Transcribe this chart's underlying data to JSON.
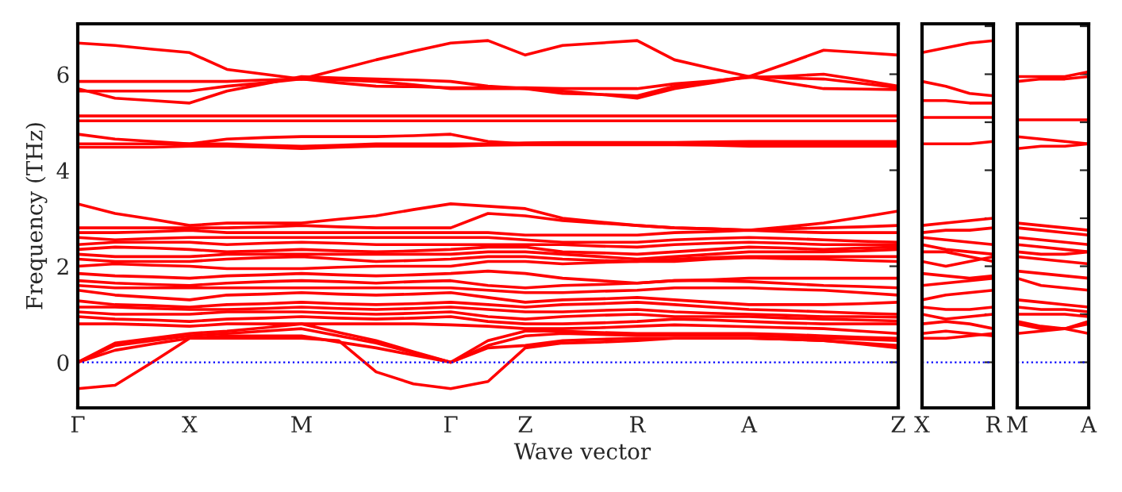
{
  "chart_data": [
    {
      "type": "line",
      "ylabel": "Frequency (THz)",
      "xlabel": "Wave vector",
      "ylim": [
        -0.95,
        7.05
      ],
      "categories": [
        "Γ",
        null,
        null,
        "X",
        null,
        null,
        "M",
        null,
        null,
        null,
        "Γ",
        null,
        "Z",
        null,
        null,
        "R",
        null,
        null,
        "A",
        null,
        null,
        null,
        "Z"
      ],
      "yticks": [
        0,
        2,
        4,
        6
      ],
      "grid": false,
      "legend": false,
      "line_style": "solid",
      "marker": "none",
      "ref_lines": [
        {
          "axis": "y",
          "value": 0,
          "label": null,
          "color": "#0000ff",
          "line_style": "dotted"
        }
      ],
      "series": [
        {
          "color": "#ff0000",
          "values": [
            6.65,
            6.6,
            6.52,
            6.45,
            6.1,
            6.0,
            5.9,
            6.1,
            6.3,
            6.48,
            6.65,
            6.7,
            6.4,
            6.6,
            6.65,
            6.7,
            6.3,
            6.12,
            5.95,
            6.22,
            6.5,
            6.45,
            6.4
          ]
        },
        {
          "color": "#ff0000",
          "values": [
            5.7,
            5.5,
            5.45,
            5.4,
            5.65,
            5.8,
            5.95,
            5.92,
            5.9,
            5.88,
            5.85,
            5.75,
            5.7,
            5.65,
            5.58,
            5.5,
            5.7,
            5.82,
            5.95,
            5.82,
            5.7,
            5.69,
            5.68
          ]
        },
        {
          "color": "#ff0000",
          "values": [
            5.85,
            5.85,
            5.85,
            5.85,
            5.85,
            5.88,
            5.9,
            5.88,
            5.85,
            5.78,
            5.7,
            5.7,
            5.7,
            5.6,
            5.58,
            5.55,
            5.75,
            5.85,
            5.95,
            5.92,
            5.9,
            5.81,
            5.72
          ]
        },
        {
          "color": "#ff0000",
          "values": [
            5.65,
            5.65,
            5.65,
            5.65,
            5.75,
            5.82,
            5.9,
            5.82,
            5.75,
            5.74,
            5.72,
            5.72,
            5.72,
            5.7,
            5.7,
            5.7,
            5.8,
            5.86,
            5.93,
            5.96,
            6.0,
            5.88,
            5.75
          ]
        },
        {
          "color": "#ff0000",
          "values": [
            5.13,
            5.13,
            5.13,
            5.13,
            5.13,
            5.13,
            5.13,
            5.13,
            5.13,
            5.13,
            5.13,
            5.13,
            5.13,
            5.13,
            5.13,
            5.13,
            5.13,
            5.13,
            5.13,
            5.13,
            5.13,
            5.13,
            5.13
          ]
        },
        {
          "color": "#ff0000",
          "values": [
            5.03,
            5.03,
            5.03,
            5.03,
            5.03,
            5.03,
            5.03,
            5.03,
            5.03,
            5.03,
            5.03,
            5.03,
            5.03,
            5.03,
            5.03,
            5.03,
            5.03,
            5.03,
            5.03,
            5.03,
            5.03,
            5.03,
            5.03
          ]
        },
        {
          "color": "#ff0000",
          "values": [
            4.75,
            4.65,
            4.6,
            4.55,
            4.65,
            4.68,
            4.7,
            4.7,
            4.7,
            4.72,
            4.75,
            4.6,
            4.55,
            4.55,
            4.55,
            4.55,
            4.55,
            4.55,
            4.55,
            4.55,
            4.55,
            4.55,
            4.55
          ]
        },
        {
          "color": "#ff0000",
          "values": [
            4.55,
            4.55,
            4.55,
            4.55,
            4.55,
            4.52,
            4.5,
            4.52,
            4.55,
            4.55,
            4.55,
            4.55,
            4.57,
            4.58,
            4.58,
            4.58,
            4.58,
            4.59,
            4.6,
            4.6,
            4.6,
            4.6,
            4.6
          ]
        },
        {
          "color": "#ff0000",
          "values": [
            4.48,
            4.48,
            4.48,
            4.5,
            4.5,
            4.48,
            4.45,
            4.48,
            4.5,
            4.5,
            4.5,
            4.52,
            4.53,
            4.53,
            4.53,
            4.53,
            4.53,
            4.52,
            4.5,
            4.5,
            4.5,
            4.5,
            4.5
          ]
        },
        {
          "color": "#ff0000",
          "values": [
            3.3,
            3.1,
            2.98,
            2.85,
            2.9,
            2.9,
            2.9,
            2.98,
            3.05,
            3.18,
            3.3,
            3.25,
            3.2,
            3.0,
            2.92,
            2.85,
            2.8,
            2.78,
            2.75,
            2.82,
            2.9,
            3.02,
            3.15
          ]
        },
        {
          "color": "#ff0000",
          "values": [
            2.8,
            2.8,
            2.8,
            2.8,
            2.8,
            2.82,
            2.85,
            2.82,
            2.8,
            2.8,
            2.8,
            3.1,
            3.05,
            2.95,
            2.9,
            2.85,
            2.8,
            2.78,
            2.75,
            2.78,
            2.8,
            2.82,
            2.85
          ]
        },
        {
          "color": "#ff0000",
          "values": [
            2.7,
            2.7,
            2.72,
            2.75,
            2.7,
            2.7,
            2.7,
            2.7,
            2.7,
            2.7,
            2.7,
            2.7,
            2.65,
            2.65,
            2.65,
            2.65,
            2.7,
            2.72,
            2.75,
            2.72,
            2.7,
            2.7,
            2.7
          ]
        },
        {
          "color": "#ff0000",
          "values": [
            2.6,
            2.55,
            2.58,
            2.6,
            2.6,
            2.6,
            2.6,
            2.6,
            2.6,
            2.6,
            2.6,
            2.6,
            2.55,
            2.5,
            2.5,
            2.5,
            2.55,
            2.58,
            2.6,
            2.58,
            2.55,
            2.52,
            2.5
          ]
        },
        {
          "color": "#ff0000",
          "values": [
            2.45,
            2.5,
            2.5,
            2.5,
            2.45,
            2.48,
            2.5,
            2.48,
            2.45,
            2.45,
            2.45,
            2.45,
            2.45,
            2.45,
            2.42,
            2.4,
            2.45,
            2.48,
            2.5,
            2.48,
            2.45,
            2.45,
            2.45
          ]
        },
        {
          "color": "#ff0000",
          "values": [
            2.35,
            2.4,
            2.38,
            2.35,
            2.3,
            2.32,
            2.35,
            2.32,
            2.3,
            2.32,
            2.35,
            2.4,
            2.4,
            2.3,
            2.28,
            2.25,
            2.3,
            2.35,
            2.4,
            2.38,
            2.35,
            2.38,
            2.4
          ]
        },
        {
          "color": "#ff0000",
          "values": [
            2.25,
            2.2,
            2.2,
            2.2,
            2.25,
            2.25,
            2.25,
            2.25,
            2.25,
            2.25,
            2.25,
            2.3,
            2.3,
            2.25,
            2.2,
            2.15,
            2.2,
            2.25,
            2.3,
            2.3,
            2.3,
            2.32,
            2.35
          ]
        },
        {
          "color": "#ff0000",
          "values": [
            2.15,
            2.1,
            2.1,
            2.1,
            2.15,
            2.18,
            2.2,
            2.15,
            2.1,
            2.12,
            2.15,
            2.2,
            2.2,
            2.15,
            2.12,
            2.1,
            2.15,
            2.18,
            2.2,
            2.2,
            2.2,
            2.2,
            2.2
          ]
        },
        {
          "color": "#ff0000",
          "values": [
            2.0,
            2.05,
            2.02,
            2.0,
            1.95,
            1.95,
            1.95,
            1.98,
            2.0,
            2.0,
            2.0,
            2.1,
            2.1,
            2.05,
            2.08,
            2.1,
            2.1,
            2.15,
            2.18,
            2.16,
            2.15,
            2.12,
            2.1
          ]
        },
        {
          "color": "#ff0000",
          "values": [
            1.85,
            1.8,
            1.78,
            1.75,
            1.8,
            1.82,
            1.85,
            1.82,
            1.8,
            1.82,
            1.85,
            1.9,
            1.85,
            1.75,
            1.7,
            1.65,
            1.7,
            1.72,
            1.75,
            1.75,
            1.75,
            1.75,
            1.75
          ]
        },
        {
          "color": "#ff0000",
          "values": [
            1.7,
            1.65,
            1.62,
            1.6,
            1.65,
            1.68,
            1.7,
            1.68,
            1.65,
            1.68,
            1.7,
            1.6,
            1.55,
            1.6,
            1.62,
            1.65,
            1.7,
            1.7,
            1.68,
            1.64,
            1.6,
            1.58,
            1.55
          ]
        },
        {
          "color": "#ff0000",
          "values": [
            1.6,
            1.55,
            1.55,
            1.55,
            1.55,
            1.55,
            1.55,
            1.55,
            1.55,
            1.55,
            1.55,
            1.5,
            1.45,
            1.45,
            1.48,
            1.5,
            1.55,
            1.55,
            1.55,
            1.52,
            1.5,
            1.45,
            1.4
          ]
        },
        {
          "color": "#ff0000",
          "values": [
            1.5,
            1.4,
            1.35,
            1.3,
            1.4,
            1.42,
            1.45,
            1.42,
            1.4,
            1.42,
            1.45,
            1.35,
            1.25,
            1.3,
            1.32,
            1.35,
            1.3,
            1.25,
            1.2,
            1.2,
            1.2,
            1.22,
            1.25
          ]
        },
        {
          "color": "#ff0000",
          "values": [
            1.28,
            1.2,
            1.18,
            1.15,
            1.2,
            1.22,
            1.25,
            1.22,
            1.2,
            1.22,
            1.25,
            1.2,
            1.15,
            1.2,
            1.22,
            1.25,
            1.2,
            1.15,
            1.1,
            1.08,
            1.05,
            1.02,
            1.0
          ]
        },
        {
          "color": "#ff0000",
          "values": [
            1.15,
            1.15,
            1.12,
            1.1,
            1.1,
            1.12,
            1.15,
            1.12,
            1.1,
            1.12,
            1.15,
            1.1,
            1.05,
            1.05,
            1.08,
            1.1,
            1.05,
            1.02,
            1.0,
            0.98,
            0.95,
            0.95,
            0.94
          ]
        },
        {
          "color": "#ff0000",
          "values": [
            1.05,
            1.0,
            1.0,
            1.0,
            1.05,
            1.05,
            1.05,
            1.02,
            1.0,
            1.02,
            1.05,
            0.95,
            0.9,
            0.95,
            0.98,
            1.0,
            0.95,
            0.95,
            0.95,
            0.92,
            0.9,
            0.88,
            0.86
          ]
        },
        {
          "color": "#ff0000",
          "values": [
            0.95,
            0.9,
            0.88,
            0.85,
            0.9,
            0.92,
            0.95,
            0.92,
            0.9,
            0.92,
            0.95,
            0.85,
            0.8,
            0.8,
            0.82,
            0.85,
            0.9,
            0.88,
            0.85,
            0.82,
            0.8,
            0.8,
            0.8
          ]
        },
        {
          "color": "#ff0000",
          "values": [
            0.8,
            0.8,
            0.78,
            0.75,
            0.8,
            0.8,
            0.8,
            0.8,
            0.8,
            0.8,
            0.78,
            0.75,
            0.7,
            0.7,
            0.72,
            0.75,
            0.78,
            0.76,
            0.74,
            0.72,
            0.7,
            0.65,
            0.6
          ]
        },
        {
          "color": "#ff0000",
          "values": [
            0,
            0.4,
            0.5,
            0.6,
            0.65,
            0.72,
            0.8,
            0.62,
            0.45,
            0.22,
            0,
            0.45,
            0.65,
            0.65,
            0.62,
            0.6,
            0.6,
            0.6,
            0.6,
            0.58,
            0.55,
            0.52,
            0.5
          ]
        },
        {
          "color": "#ff0000",
          "values": [
            0,
            0.35,
            0.45,
            0.55,
            0.6,
            0.65,
            0.7,
            0.55,
            0.4,
            0.2,
            0,
            0.35,
            0.55,
            0.6,
            0.58,
            0.56,
            0.56,
            0.56,
            0.56,
            0.53,
            0.5,
            0.48,
            0.45
          ]
        },
        {
          "color": "#ff0000",
          "values": [
            0,
            0.25,
            0.38,
            0.5,
            0.55,
            0.55,
            0.55,
            0.42,
            0.3,
            0.15,
            0,
            0.3,
            0.35,
            0.45,
            0.48,
            0.5,
            0.5,
            0.5,
            0.5,
            0.48,
            0.45,
            0.4,
            0.35
          ]
        },
        {
          "color": "#ff0000",
          "values": [
            -0.55,
            -0.48,
            0.0,
            0.5,
            0.5,
            0.5,
            0.5,
            0.45,
            -0.2,
            -0.45,
            -0.55,
            -0.4,
            0.3,
            0.4,
            0.42,
            0.45,
            0.5,
            0.5,
            0.5,
            0.48,
            0.45,
            0.38,
            0.3
          ]
        }
      ]
    },
    {
      "type": "line",
      "ylim": [
        -0.95,
        7.05
      ],
      "tick_labels": "x",
      "categories": [
        "X",
        null,
        null,
        "R"
      ],
      "grid": false,
      "legend": false,
      "line_style": "solid",
      "marker": "none",
      "ref_lines": [
        {
          "axis": "y",
          "value": 0,
          "label": null,
          "color": "#0000ff",
          "line_style": "dotted"
        }
      ],
      "series": [
        {
          "color": "#ff0000",
          "values": [
            6.45,
            6.55,
            6.65,
            6.7
          ]
        },
        {
          "color": "#ff0000",
          "values": [
            5.85,
            5.75,
            5.6,
            5.55
          ]
        },
        {
          "color": "#ff0000",
          "values": [
            5.45,
            5.45,
            5.4,
            5.4
          ]
        },
        {
          "color": "#ff0000",
          "values": [
            5.1,
            5.1,
            5.1,
            5.1
          ]
        },
        {
          "color": "#ff0000",
          "values": [
            4.55,
            4.55,
            4.55,
            4.6
          ]
        },
        {
          "color": "#ff0000",
          "values": [
            2.85,
            2.9,
            2.95,
            3.0
          ]
        },
        {
          "color": "#ff0000",
          "values": [
            2.7,
            2.75,
            2.75,
            2.8
          ]
        },
        {
          "color": "#ff0000",
          "values": [
            2.6,
            2.55,
            2.5,
            2.45
          ]
        },
        {
          "color": "#ff0000",
          "values": [
            2.45,
            2.35,
            2.3,
            2.25
          ]
        },
        {
          "color": "#ff0000",
          "values": [
            2.3,
            2.3,
            2.2,
            2.1
          ]
        },
        {
          "color": "#ff0000",
          "values": [
            2.1,
            2.0,
            2.1,
            2.2
          ]
        },
        {
          "color": "#ff0000",
          "values": [
            1.85,
            1.8,
            1.75,
            1.8
          ]
        },
        {
          "color": "#ff0000",
          "values": [
            1.6,
            1.65,
            1.7,
            1.75
          ]
        },
        {
          "color": "#ff0000",
          "values": [
            1.3,
            1.4,
            1.45,
            1.5
          ]
        },
        {
          "color": "#ff0000",
          "values": [
            1.15,
            1.1,
            1.1,
            1.15
          ]
        },
        {
          "color": "#ff0000",
          "values": [
            1.0,
            0.9,
            0.95,
            1.0
          ]
        },
        {
          "color": "#ff0000",
          "values": [
            0.8,
            0.85,
            0.8,
            0.7
          ]
        },
        {
          "color": "#ff0000",
          "values": [
            0.6,
            0.65,
            0.6,
            0.55
          ]
        },
        {
          "color": "#ff0000",
          "values": [
            0.5,
            0.5,
            0.55,
            0.6
          ]
        }
      ]
    },
    {
      "type": "line",
      "ylim": [
        -0.95,
        7.05
      ],
      "tick_labels": "x",
      "categories": [
        "M",
        null,
        null,
        "A"
      ],
      "grid": false,
      "legend": false,
      "line_style": "solid",
      "marker": "none",
      "ref_lines": [
        {
          "axis": "y",
          "value": 0,
          "label": null,
          "color": "#0000ff",
          "line_style": "dotted"
        }
      ],
      "series": [
        {
          "color": "#ff0000",
          "values": [
            5.95,
            5.95,
            5.95,
            6.05
          ]
        },
        {
          "color": "#ff0000",
          "values": [
            5.85,
            5.9,
            5.9,
            5.95
          ]
        },
        {
          "color": "#ff0000",
          "values": [
            5.05,
            5.05,
            5.05,
            5.05
          ]
        },
        {
          "color": "#ff0000",
          "values": [
            4.7,
            4.65,
            4.6,
            4.55
          ]
        },
        {
          "color": "#ff0000",
          "values": [
            4.45,
            4.5,
            4.5,
            4.55
          ]
        },
        {
          "color": "#ff0000",
          "values": [
            2.9,
            2.85,
            2.8,
            2.75
          ]
        },
        {
          "color": "#ff0000",
          "values": [
            2.8,
            2.75,
            2.7,
            2.65
          ]
        },
        {
          "color": "#ff0000",
          "values": [
            2.6,
            2.55,
            2.5,
            2.45
          ]
        },
        {
          "color": "#ff0000",
          "values": [
            2.45,
            2.4,
            2.35,
            2.3
          ]
        },
        {
          "color": "#ff0000",
          "values": [
            2.3,
            2.25,
            2.25,
            2.3
          ]
        },
        {
          "color": "#ff0000",
          "values": [
            2.2,
            2.15,
            2.1,
            2.05
          ]
        },
        {
          "color": "#ff0000",
          "values": [
            1.9,
            1.85,
            1.8,
            1.75
          ]
        },
        {
          "color": "#ff0000",
          "values": [
            1.75,
            1.6,
            1.55,
            1.5
          ]
        },
        {
          "color": "#ff0000",
          "values": [
            1.3,
            1.25,
            1.2,
            1.15
          ]
        },
        {
          "color": "#ff0000",
          "values": [
            1.15,
            1.1,
            1.1,
            1.05
          ]
        },
        {
          "color": "#ff0000",
          "values": [
            1.0,
            1.0,
            1.0,
            0.95
          ]
        },
        {
          "color": "#ff0000",
          "values": [
            0.85,
            0.75,
            0.7,
            0.6
          ]
        },
        {
          "color": "#ff0000",
          "values": [
            0.8,
            0.7,
            0.7,
            0.85
          ]
        },
        {
          "color": "#ff0000",
          "values": [
            0.6,
            0.65,
            0.7,
            0.8
          ]
        }
      ]
    }
  ]
}
